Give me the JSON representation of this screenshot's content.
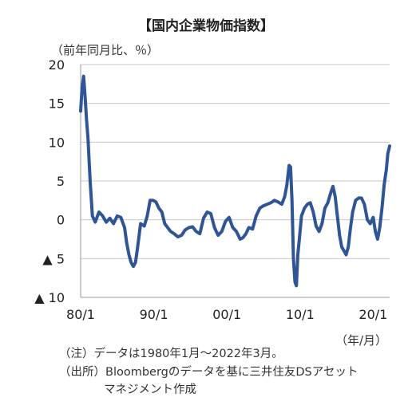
{
  "chart_data": {
    "type": "line",
    "title": "【国内企業物価指数】",
    "ylabel": "（前年同月比、％）",
    "xlabel": "（年/月）",
    "ylim": [
      -10,
      20
    ],
    "xlim": [
      1980.0,
      2022.25
    ],
    "grid": true,
    "yticks": [
      {
        "value": 20,
        "label": "20"
      },
      {
        "value": 15,
        "label": "15"
      },
      {
        "value": 10,
        "label": "10"
      },
      {
        "value": 5,
        "label": "5"
      },
      {
        "value": 0,
        "label": "0"
      },
      {
        "value": -5,
        "label": "▲ 5"
      },
      {
        "value": -10,
        "label": "▲ 10"
      }
    ],
    "xticks": [
      {
        "value": 1980.0,
        "label": "80/1"
      },
      {
        "value": 1990.0,
        "label": "90/1"
      },
      {
        "value": 2000.0,
        "label": "00/1"
      },
      {
        "value": 2010.0,
        "label": "10/1"
      },
      {
        "value": 2020.0,
        "label": "20/1"
      }
    ],
    "line_color": "#2f5597",
    "series": [
      {
        "x": [
          1980.0,
          1980.2,
          1980.4,
          1980.6,
          1980.8,
          1981.0,
          1981.3,
          1981.6,
          1982.0,
          1982.5,
          1983.0,
          1983.5,
          1984.0,
          1984.5,
          1985.0,
          1985.5,
          1986.0,
          1986.3,
          1986.6,
          1986.9,
          1987.2,
          1987.5,
          1987.8,
          1988.2,
          1988.7,
          1989.1,
          1989.5,
          1989.9,
          1990.3,
          1990.7,
          1991.1,
          1991.5,
          1991.9,
          1992.3,
          1992.8,
          1993.3,
          1993.8,
          1994.3,
          1994.8,
          1995.3,
          1995.8,
          1996.3,
          1996.8,
          1997.3,
          1997.8,
          1998.3,
          1998.8,
          1999.3,
          1999.8,
          2000.3,
          2000.8,
          2001.3,
          2001.8,
          2002.2,
          2002.6,
          2003.0,
          2003.5,
          2004.0,
          2004.5,
          2005.0,
          2005.5,
          2006.0,
          2006.5,
          2007.0,
          2007.5,
          2007.9,
          2008.2,
          2008.5,
          2008.7,
          2008.9,
          2009.1,
          2009.3,
          2009.5,
          2009.7,
          2009.9,
          2010.2,
          2010.6,
          2011.0,
          2011.4,
          2011.8,
          2012.2,
          2012.6,
          2013.0,
          2013.4,
          2013.8,
          2014.2,
          2014.5,
          2014.8,
          2015.1,
          2015.4,
          2015.7,
          2016.0,
          2016.3,
          2016.6,
          2016.9,
          2017.2,
          2017.6,
          2018.0,
          2018.4,
          2018.8,
          2019.2,
          2019.6,
          2020.0,
          2020.3,
          2020.6,
          2020.9,
          2021.2,
          2021.5,
          2021.8,
          2022.0,
          2022.25
        ],
        "values": [
          14.0,
          17.0,
          18.5,
          16.0,
          13.0,
          10.5,
          5.0,
          0.5,
          -0.3,
          1.0,
          0.5,
          -0.3,
          0.2,
          -0.5,
          0.5,
          0.3,
          -1.0,
          -3.0,
          -4.5,
          -5.5,
          -6.0,
          -5.5,
          -3.5,
          -0.5,
          -0.8,
          0.5,
          2.5,
          2.5,
          2.3,
          1.5,
          1.0,
          -0.5,
          -1.0,
          -1.5,
          -1.8,
          -2.2,
          -2.0,
          -1.3,
          -1.0,
          -0.9,
          -1.5,
          -1.8,
          0.2,
          1.0,
          0.8,
          -1.0,
          -2.0,
          -1.5,
          -0.2,
          0.3,
          -1.0,
          -1.5,
          -2.5,
          -2.3,
          -1.8,
          -1.0,
          -1.2,
          0.5,
          1.5,
          1.8,
          2.0,
          2.2,
          2.5,
          2.3,
          2.0,
          3.0,
          4.5,
          7.0,
          6.8,
          2.5,
          -5.0,
          -8.0,
          -8.5,
          -4.5,
          -2.5,
          0.5,
          1.5,
          2.0,
          2.2,
          1.0,
          -0.8,
          -1.5,
          -0.5,
          1.5,
          2.2,
          3.5,
          4.3,
          3.0,
          0.5,
          -2.0,
          -3.5,
          -4.0,
          -4.5,
          -3.5,
          -1.0,
          1.0,
          2.5,
          2.8,
          2.8,
          2.0,
          0.0,
          -0.5,
          0.3,
          -1.5,
          -2.5,
          -1.0,
          1.5,
          4.5,
          6.5,
          8.5,
          9.5
        ]
      }
    ]
  },
  "notes": [
    "（注）データは1980年1月～2022年3月。",
    "（出所）Bloombergのデータを基に三井住友DSアセット",
    "マネジメント作成"
  ]
}
